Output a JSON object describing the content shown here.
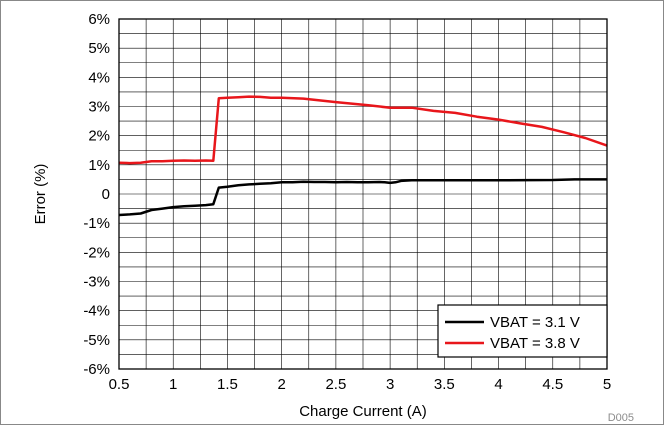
{
  "chart_data": {
    "type": "line",
    "xlabel": "Charge Current (A)",
    "ylabel": "Error (%)",
    "xlim": [
      0.5,
      5
    ],
    "ylim": [
      -6,
      6
    ],
    "x_ticks": [
      0.5,
      1,
      1.5,
      2,
      2.5,
      3,
      3.5,
      4,
      4.5,
      5
    ],
    "x_tick_labels": [
      "0.5",
      "1",
      "1.5",
      "2",
      "2.5",
      "3",
      "3.5",
      "4",
      "4.5",
      "5"
    ],
    "y_ticks": [
      6,
      5,
      4,
      3,
      2,
      1,
      0,
      -1,
      -2,
      -3,
      -4,
      -5,
      -6
    ],
    "y_tick_labels": [
      "6%",
      "5%",
      "4%",
      "3%",
      "2%",
      "1%",
      "0",
      "-1%",
      "-2%",
      "-3%",
      "-4%",
      "-5%",
      "-6%"
    ],
    "grid": true,
    "legend_position": "bottom-right",
    "figure_id": "D005",
    "series": [
      {
        "name": "VBAT = 3.1 V",
        "color": "#000000",
        "x": [
          0.5,
          0.6,
          0.7,
          0.8,
          0.9,
          1.0,
          1.1,
          1.2,
          1.3,
          1.37,
          1.42,
          1.5,
          1.6,
          1.7,
          1.8,
          1.9,
          2.0,
          2.1,
          2.2,
          2.3,
          2.4,
          2.5,
          2.6,
          2.7,
          2.8,
          2.9,
          2.95,
          3.0,
          3.05,
          3.1,
          3.2,
          3.5,
          4.0,
          4.5,
          4.7,
          5.0
        ],
        "y": [
          -0.72,
          -0.7,
          -0.67,
          -0.55,
          -0.5,
          -0.45,
          -0.42,
          -0.4,
          -0.38,
          -0.35,
          0.22,
          0.25,
          0.3,
          0.33,
          0.35,
          0.37,
          0.4,
          0.4,
          0.42,
          0.41,
          0.41,
          0.4,
          0.41,
          0.4,
          0.4,
          0.41,
          0.4,
          0.38,
          0.4,
          0.45,
          0.47,
          0.47,
          0.47,
          0.48,
          0.5,
          0.5
        ]
      },
      {
        "name": "VBAT = 3.8 V",
        "color": "#e8161b",
        "x": [
          0.5,
          0.6,
          0.7,
          0.8,
          0.9,
          1.0,
          1.1,
          1.2,
          1.3,
          1.37,
          1.42,
          1.5,
          1.6,
          1.7,
          1.8,
          1.9,
          2.0,
          2.2,
          2.5,
          2.8,
          3.0,
          3.2,
          3.4,
          3.6,
          3.8,
          4.0,
          4.2,
          4.4,
          4.6,
          4.8,
          5.0
        ],
        "y": [
          1.07,
          1.06,
          1.07,
          1.12,
          1.12,
          1.14,
          1.15,
          1.14,
          1.15,
          1.14,
          3.28,
          3.3,
          3.32,
          3.34,
          3.33,
          3.3,
          3.3,
          3.27,
          3.15,
          3.04,
          2.96,
          2.96,
          2.85,
          2.78,
          2.65,
          2.55,
          2.42,
          2.3,
          2.12,
          1.92,
          1.66
        ]
      }
    ]
  }
}
